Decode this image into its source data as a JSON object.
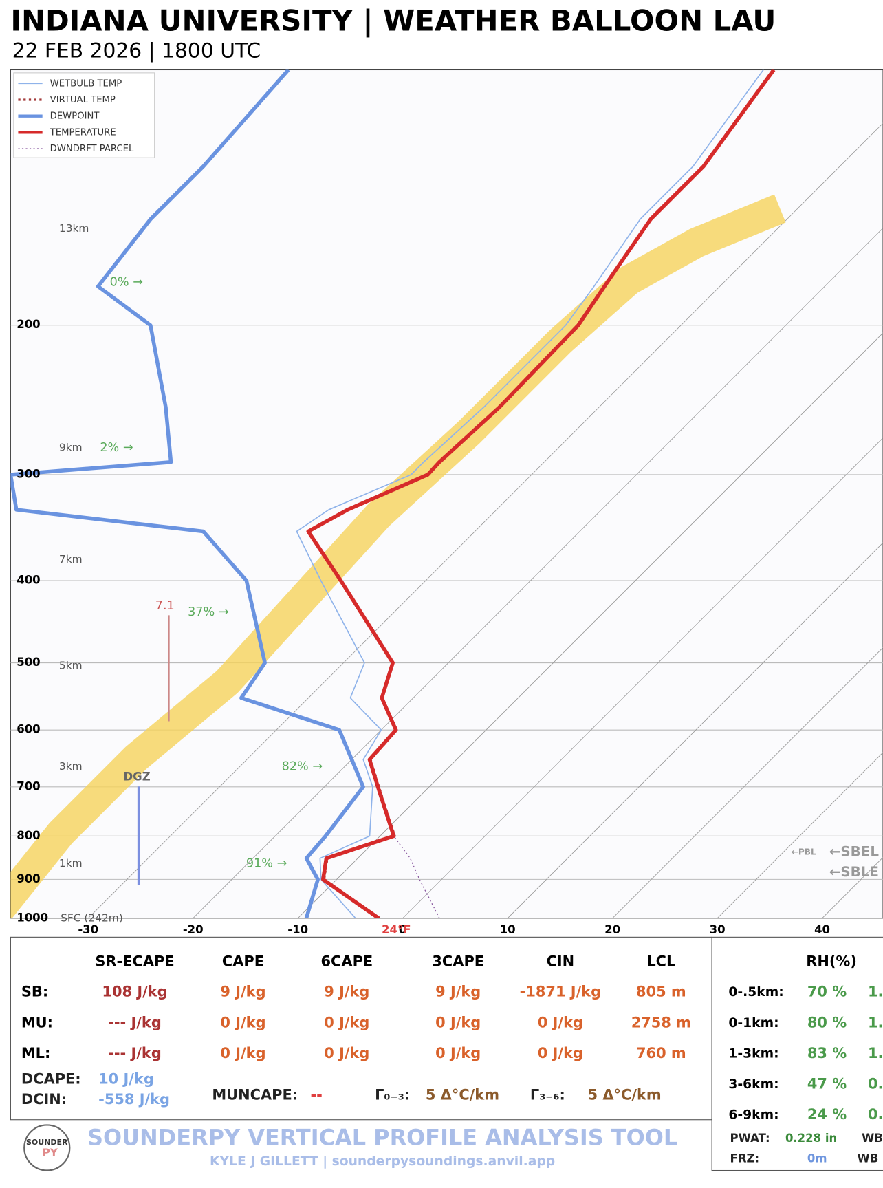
{
  "header": {
    "title": "INDIANA UNIVERSITY | WEATHER BALLOON LAU",
    "subtitle": "22 FEB 2026 | 1800 UTC"
  },
  "chart_data": {
    "type": "skewt",
    "ylim": [
      1000,
      100
    ],
    "yticks": [
      1000,
      900,
      800,
      700,
      600,
      500,
      400,
      300,
      200
    ],
    "xlim": [
      -37.4,
      45.8
    ],
    "xticks": [
      -30,
      -20,
      -10,
      0,
      10,
      20,
      30,
      40
    ],
    "pressure": [
      1000,
      900,
      850,
      800,
      700,
      650,
      600,
      550,
      500,
      400,
      350,
      330,
      300,
      290,
      250,
      200,
      180,
      150,
      130,
      100
    ],
    "series": [
      {
        "name": "WETBULB TEMP",
        "color": "#8fb3ea",
        "style": "thin",
        "values": [
          -4.5,
          -11.5,
          -13.6,
          -11.0,
          -15.4,
          -18.9,
          -20.0,
          -26,
          -28,
          -40,
          -47,
          -46,
          -41.5,
          -41.5,
          -41,
          -41,
          -42,
          -44,
          -44,
          -46.5
        ]
      },
      {
        "name": "VIRTUAL TEMP",
        "color": "#a33a3a",
        "style": "dotted",
        "values": [
          -2.2,
          -11.2,
          -12.9,
          -8.6,
          -14.8,
          -18.2,
          -18.5,
          -23.0,
          -25.3,
          -38.1,
          -45.9,
          -44.2,
          -39.9,
          -40.0,
          -39.5,
          -39.8,
          -41.0,
          -43.0,
          -43.0,
          -45.5
        ]
      },
      {
        "name": "DEWPOINT",
        "color": "#6a93e0",
        "style": "thick",
        "values": [
          -9.2,
          -11.8,
          -14.9,
          -15.2,
          -16.3,
          -20.0,
          -24.0,
          -36.4,
          -37.5,
          -47.1,
          -55.9,
          -75.8,
          -79.7,
          -65.6,
          -71.3,
          -80.6,
          -89.3,
          -90.7,
          -90.7,
          -91.8
        ]
      },
      {
        "name": "TEMPERATURE",
        "color": "#d62a2a",
        "style": "thick",
        "values": [
          -2.3,
          -11.3,
          -13.0,
          -8.7,
          -14.9,
          -18.3,
          -18.6,
          -23.0,
          -25.3,
          -38.1,
          -45.9,
          -44.2,
          -39.9,
          -40.0,
          -39.5,
          -39.8,
          -41.0,
          -43.0,
          -43.0,
          -45.5
        ]
      },
      {
        "name": "DWNDRFT PARCEL",
        "color": "#8a5aa0",
        "style": "dashed",
        "values": [
          3.5,
          -2.1,
          -5.0,
          -8.7,
          null,
          null,
          null,
          null,
          null,
          null,
          null,
          null,
          null,
          null,
          null,
          null,
          null,
          null,
          null,
          null
        ]
      }
    ],
    "height_labels": [
      {
        "text": "13km",
        "pressure": 154
      },
      {
        "text": "9km",
        "pressure": 279
      },
      {
        "text": "7km",
        "pressure": 378
      },
      {
        "text": "5km",
        "pressure": 504
      },
      {
        "text": "3km",
        "pressure": 663
      },
      {
        "text": "1km",
        "pressure": 862
      },
      {
        "text": "SFC (242m)",
        "pressure": 1000
      }
    ],
    "rh_labels": [
      {
        "text": "0% →",
        "pressure": 178
      },
      {
        "text": "2% →",
        "pressure": 279
      },
      {
        "text": "37% →",
        "pressure": 436
      },
      {
        "text": "82% →",
        "pressure": 663
      },
      {
        "text": "91% →",
        "pressure": 862
      }
    ],
    "lapse_label": "7.1",
    "dgz_label": "DGZ",
    "surface_label": "24°F",
    "level_markers": [
      "←PBL",
      "←SBEL",
      "←SBLE"
    ]
  },
  "table": {
    "headers": [
      "SR-ECAPE",
      "CAPE",
      "6CAPE",
      "3CAPE",
      "CIN",
      "LCL"
    ],
    "rows": [
      {
        "label": "SB:",
        "cells": [
          "108 J/kg",
          "9 J/kg",
          "9 J/kg",
          "9 J/kg",
          "-1871 J/kg",
          "805 m"
        ]
      },
      {
        "label": "MU:",
        "cells": [
          "--- J/kg",
          "0 J/kg",
          "0 J/kg",
          "0 J/kg",
          "0 J/kg",
          "2758 m"
        ]
      },
      {
        "label": "ML:",
        "cells": [
          "--- J/kg",
          "0 J/kg",
          "0 J/kg",
          "0 J/kg",
          "0 J/kg",
          "760 m"
        ]
      }
    ],
    "dcape_label": "DCAPE:",
    "dcape": "10 J/kg",
    "dcin_label": "DCIN:",
    "dcin": "-558 J/kg",
    "muncape_label": "MUNCAPE:",
    "muncape": "--",
    "g03_label": "Γ₀₋₃:",
    "g03": "5 Δ°C/km",
    "g36_label": "Γ₃₋₆:",
    "g36": "5 Δ°C/km"
  },
  "rh_panel": {
    "title": "RH(%)",
    "rows": [
      {
        "label": "0-.5km:",
        "value": "70 %",
        "extra": "1."
      },
      {
        "label": "0-1km:",
        "value": "80 %",
        "extra": "1."
      },
      {
        "label": "1-3km:",
        "value": "83 %",
        "extra": "1."
      },
      {
        "label": "3-6km:",
        "value": "47 %",
        "extra": "0."
      },
      {
        "label": "6-9km:",
        "value": "24 %",
        "extra": "0."
      }
    ],
    "pwat_label": "PWAT:",
    "pwat": "0.228 in",
    "pwat_extra": "WB",
    "frz_label": "FRZ:",
    "frz": "0m",
    "frz_extra": "WB"
  },
  "footer": {
    "tool": "SOUNDERPY VERTICAL PROFILE ANALYSIS TOOL",
    "credit": "KYLE J GILLETT | sounderpysoundings.anvil.app",
    "logo_top": "SOUNDER",
    "logo_bottom": "PY"
  }
}
